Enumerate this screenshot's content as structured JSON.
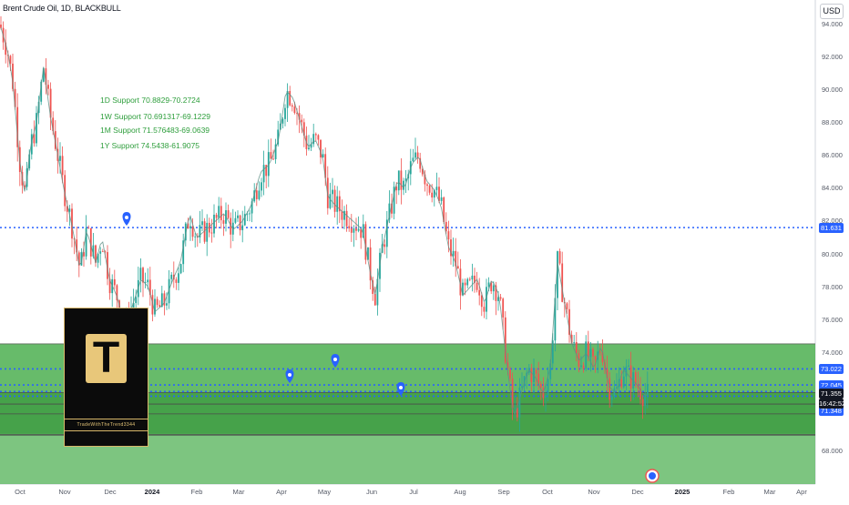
{
  "header": {
    "title": "Brent Crude Oil, 1D, BLACKBULL",
    "currency": "USD"
  },
  "annotations": [
    "1D Support 70.8829-70.2724",
    "1W Support 70.691317-69.1229",
    "1M Support 71.576483-69.0639",
    "1Y Support 74.5438-61.9075"
  ],
  "logo": {
    "letter": "T",
    "text": "TradeWithTheTrend3344"
  },
  "chart_data": {
    "type": "candlestick",
    "ylim": [
      66.2,
      95.0
    ],
    "y_ticks": [
      "94.000",
      "92.000",
      "90.000",
      "88.000",
      "86.000",
      "84.000",
      "82.000",
      "80.000",
      "78.000",
      "76.000",
      "74.000",
      "68.000"
    ],
    "x_ticks": [
      {
        "label": "Oct",
        "bold": false
      },
      {
        "label": "Nov",
        "bold": false
      },
      {
        "label": "Dec",
        "bold": false
      },
      {
        "label": "2024",
        "bold": true
      },
      {
        "label": "Feb",
        "bold": false
      },
      {
        "label": "Mar",
        "bold": false
      },
      {
        "label": "Apr",
        "bold": false
      },
      {
        "label": "May",
        "bold": false
      },
      {
        "label": "Jun",
        "bold": false
      },
      {
        "label": "Jul",
        "bold": false
      },
      {
        "label": "Aug",
        "bold": false
      },
      {
        "label": "Sep",
        "bold": false
      },
      {
        "label": "Oct",
        "bold": false
      },
      {
        "label": "Nov",
        "bold": false
      },
      {
        "label": "Dec",
        "bold": false
      },
      {
        "label": "2025",
        "bold": true
      },
      {
        "label": "Feb",
        "bold": false
      },
      {
        "label": "Mar",
        "bold": false
      },
      {
        "label": "Apr",
        "bold": false
      }
    ],
    "zones": [
      {
        "from": 69.0,
        "to": 74.5438,
        "color": "#4caf50"
      },
      {
        "from": 61.9075,
        "to": 69.0,
        "color": "#66bb6a"
      },
      {
        "from": 69.0639,
        "to": 71.576483,
        "color": "#43a047"
      }
    ],
    "levels": [
      {
        "value": 81.631,
        "label": "81.631",
        "style": "dotted"
      },
      {
        "value": 73.022,
        "label": "73.022",
        "style": "dotted"
      },
      {
        "value": 72.045,
        "label": "72.045",
        "style": "dotted"
      },
      {
        "value": 71.642,
        "label": "71.642",
        "style": "dotted"
      },
      {
        "value": 71.355,
        "label": "71.355",
        "style": "dotted"
      },
      {
        "value": 71.348,
        "label": "71.348",
        "style": "solid"
      }
    ],
    "countdown": "16:42:52",
    "series_keypoints": [
      [
        0,
        94.0
      ],
      [
        8,
        92.5
      ],
      [
        14,
        90.5
      ],
      [
        22,
        85.5
      ],
      [
        28,
        83.5
      ],
      [
        33,
        86.5
      ],
      [
        40,
        88.0
      ],
      [
        48,
        91.5
      ],
      [
        55,
        88.5
      ],
      [
        62,
        86.5
      ],
      [
        70,
        84.0
      ],
      [
        80,
        81.5
      ],
      [
        88,
        79.0
      ],
      [
        95,
        81.5
      ],
      [
        105,
        79.5
      ],
      [
        112,
        81.0
      ],
      [
        120,
        78.5
      ],
      [
        128,
        77.5
      ],
      [
        138,
        75.5
      ],
      [
        146,
        77.0
      ],
      [
        155,
        78.5
      ],
      [
        163,
        78.0
      ],
      [
        170,
        76.5
      ],
      [
        180,
        77.0
      ],
      [
        190,
        78.5
      ],
      [
        198,
        79.5
      ],
      [
        208,
        82.5
      ],
      [
        216,
        81.0
      ],
      [
        226,
        81.5
      ],
      [
        236,
        82.0
      ],
      [
        246,
        82.5
      ],
      [
        256,
        81.5
      ],
      [
        266,
        82.0
      ],
      [
        276,
        83.0
      ],
      [
        286,
        85.0
      ],
      [
        296,
        85.5
      ],
      [
        306,
        87.0
      ],
      [
        314,
        90.0
      ],
      [
        322,
        89.5
      ],
      [
        330,
        88.0
      ],
      [
        338,
        86.5
      ],
      [
        346,
        87.0
      ],
      [
        354,
        86.0
      ],
      [
        360,
        83.5
      ],
      [
        368,
        83.0
      ],
      [
        378,
        82.5
      ],
      [
        388,
        82.0
      ],
      [
        398,
        81.5
      ],
      [
        406,
        79.0
      ],
      [
        412,
        77.5
      ],
      [
        420,
        80.5
      ],
      [
        428,
        82.5
      ],
      [
        436,
        84.5
      ],
      [
        444,
        84.0
      ],
      [
        452,
        85.5
      ],
      [
        460,
        86.0
      ],
      [
        468,
        84.5
      ],
      [
        476,
        84.0
      ],
      [
        484,
        83.0
      ],
      [
        492,
        80.5
      ],
      [
        500,
        79.5
      ],
      [
        508,
        77.5
      ],
      [
        516,
        78.0
      ],
      [
        524,
        78.5
      ],
      [
        532,
        77.0
      ],
      [
        540,
        78.5
      ],
      [
        548,
        77.5
      ],
      [
        556,
        73.5
      ],
      [
        564,
        70.0
      ],
      [
        572,
        71.5
      ],
      [
        580,
        73.0
      ],
      [
        588,
        72.5
      ],
      [
        596,
        71.5
      ],
      [
        604,
        73.0
      ],
      [
        612,
        79.5
      ],
      [
        620,
        77.0
      ],
      [
        628,
        74.5
      ],
      [
        636,
        73.5
      ],
      [
        644,
        74.0
      ],
      [
        652,
        73.0
      ],
      [
        660,
        74.5
      ],
      [
        668,
        72.0
      ],
      [
        676,
        71.5
      ],
      [
        684,
        73.0
      ],
      [
        692,
        72.5
      ],
      [
        700,
        72.0
      ],
      [
        706,
        71.5
      ],
      [
        711,
        71.4
      ]
    ]
  }
}
